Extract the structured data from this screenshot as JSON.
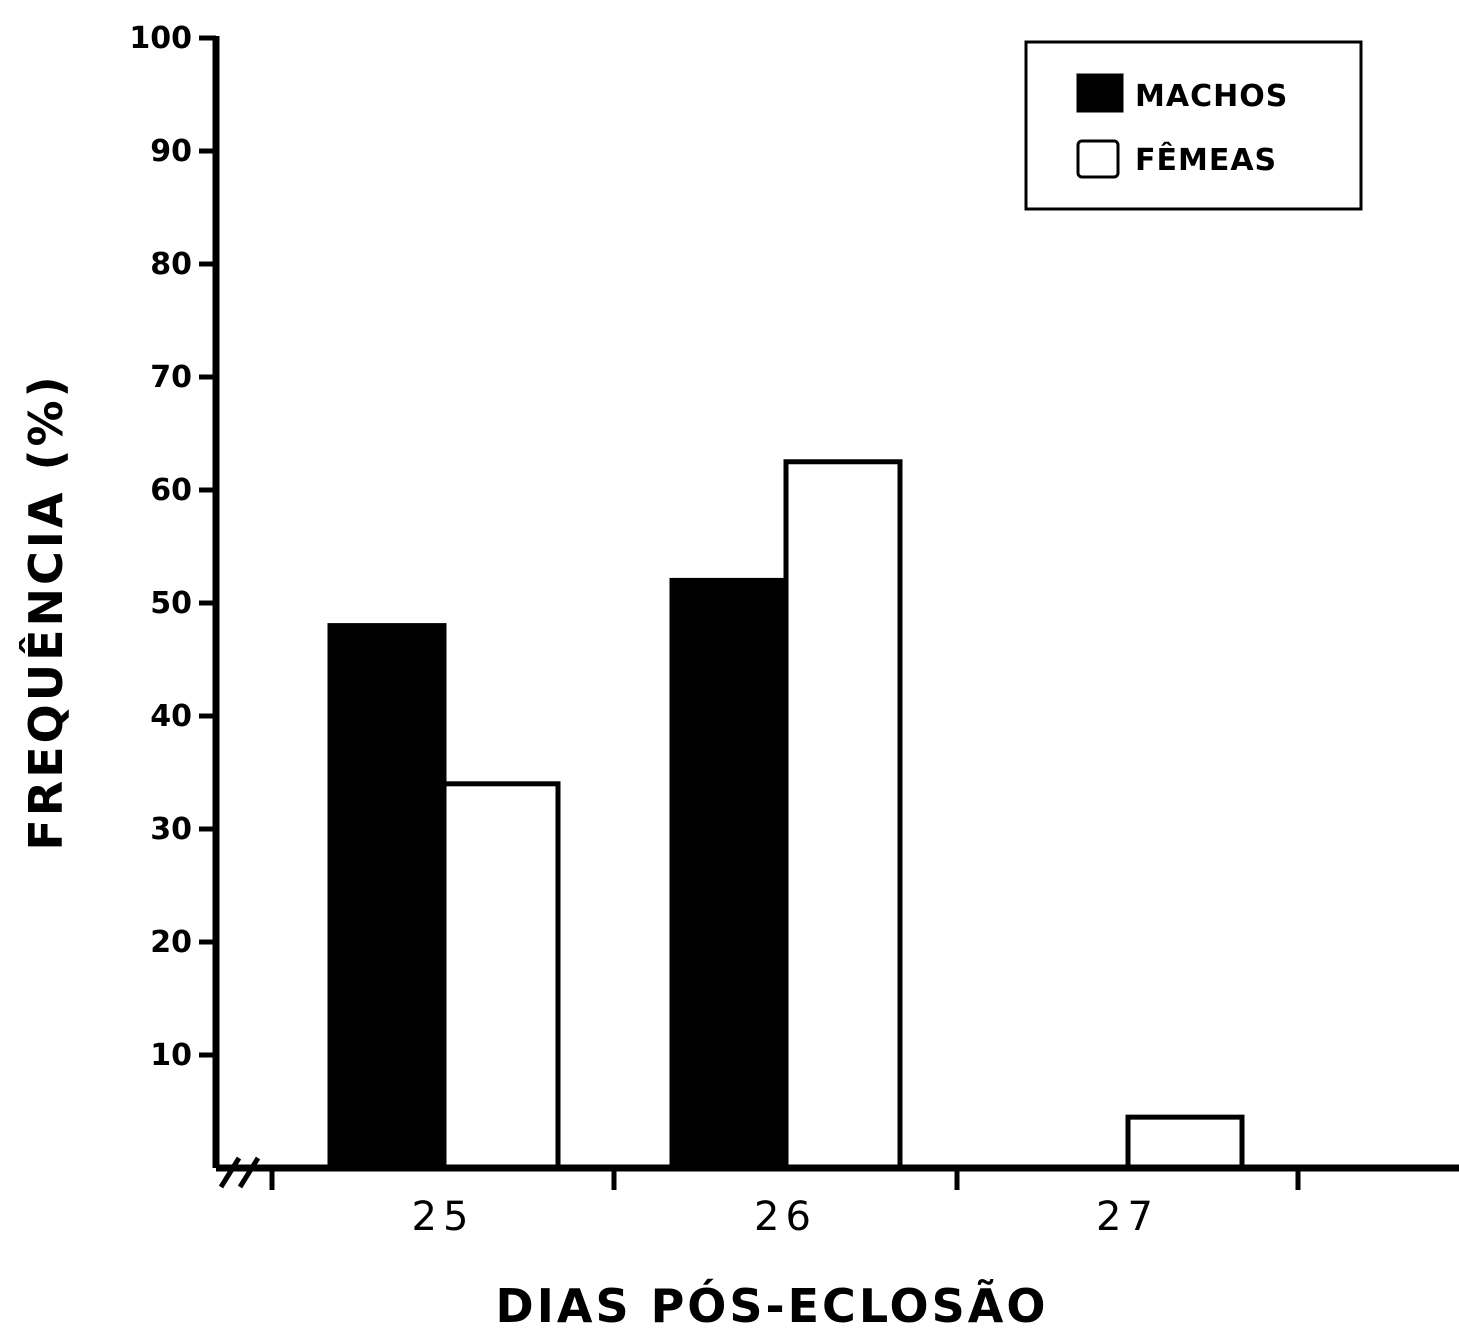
{
  "chart_data": {
    "type": "bar",
    "categories": [
      "25",
      "26",
      "27"
    ],
    "series": [
      {
        "name": "MACHOS",
        "values": [
          48,
          52,
          0
        ],
        "color": "#000000"
      },
      {
        "name": "FÊMEAS",
        "values": [
          34,
          62.5,
          4.5
        ],
        "color": "#ffffff"
      }
    ],
    "xlabel": "DIAS PÓS-ECLOSÃO",
    "ylabel": "FREQUÊNCIA (%)",
    "ylim": [
      0,
      100
    ],
    "yticks": [
      "10",
      "20",
      "30",
      "40",
      "50",
      "60",
      "70",
      "80",
      "90",
      "100"
    ],
    "legend_position": "top-right",
    "grid": false
  }
}
